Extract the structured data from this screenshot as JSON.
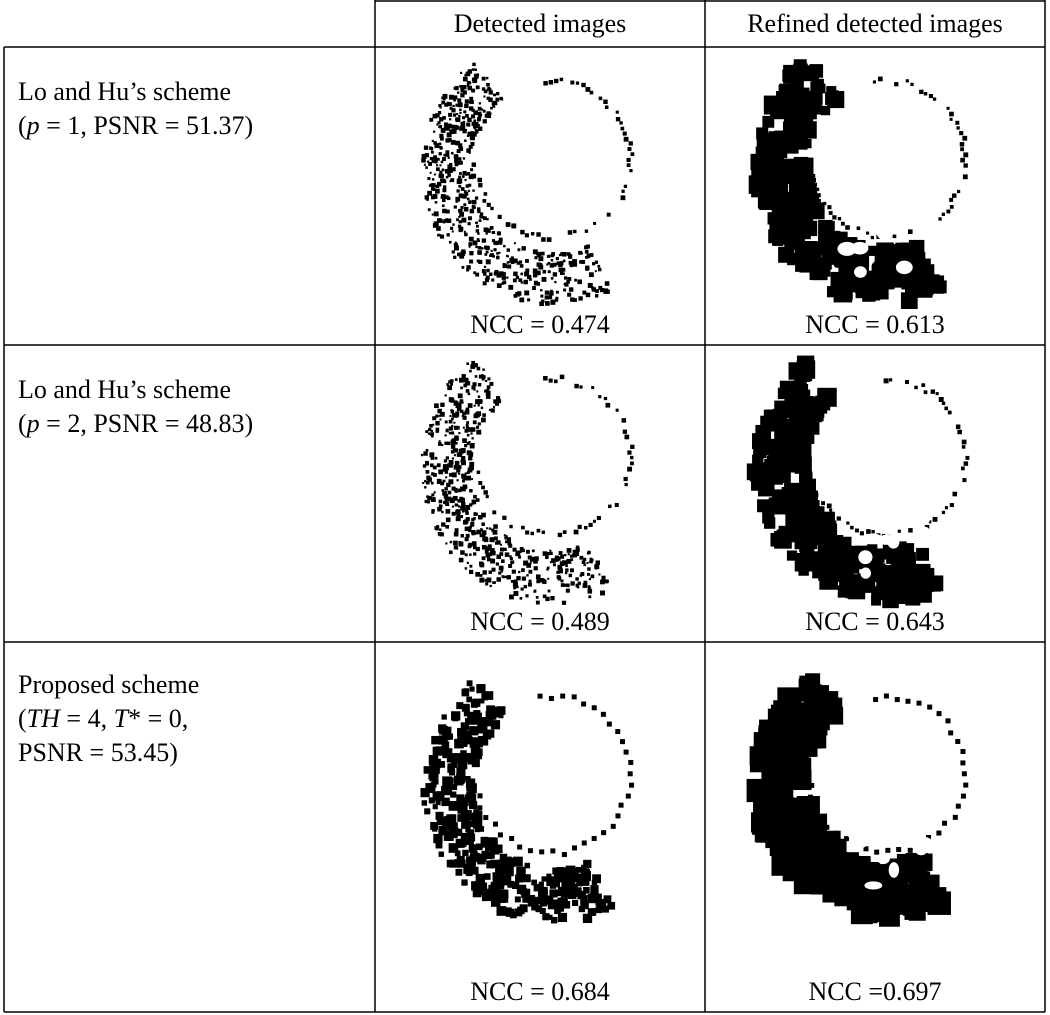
{
  "table": {
    "header": [
      "Detected images",
      "Refined detected images"
    ],
    "rows": [
      {
        "label": [
          [
            "Lo and Hu’s scheme"
          ],
          [
            "(",
            "p",
            " = 1, PSNR = 51.37)"
          ]
        ],
        "ncc": [
          "NCC = 0.474",
          "NCC = 0.613"
        ]
      },
      {
        "label": [
          [
            "Lo and Hu’s scheme"
          ],
          [
            "(",
            "p",
            " = 2, PSNR = 48.83)"
          ]
        ],
        "ncc": [
          "NCC = 0.489",
          "NCC = 0.643"
        ]
      },
      {
        "label": [
          [
            "Proposed scheme"
          ],
          [
            "(",
            "TH",
            " = 4, ",
            "T",
            "* = 0,"
          ],
          [
            "PSNR = 53.45)"
          ]
        ],
        "ncc": [
          "NCC = 0.684",
          "NCC =0.697"
        ]
      }
    ]
  }
}
